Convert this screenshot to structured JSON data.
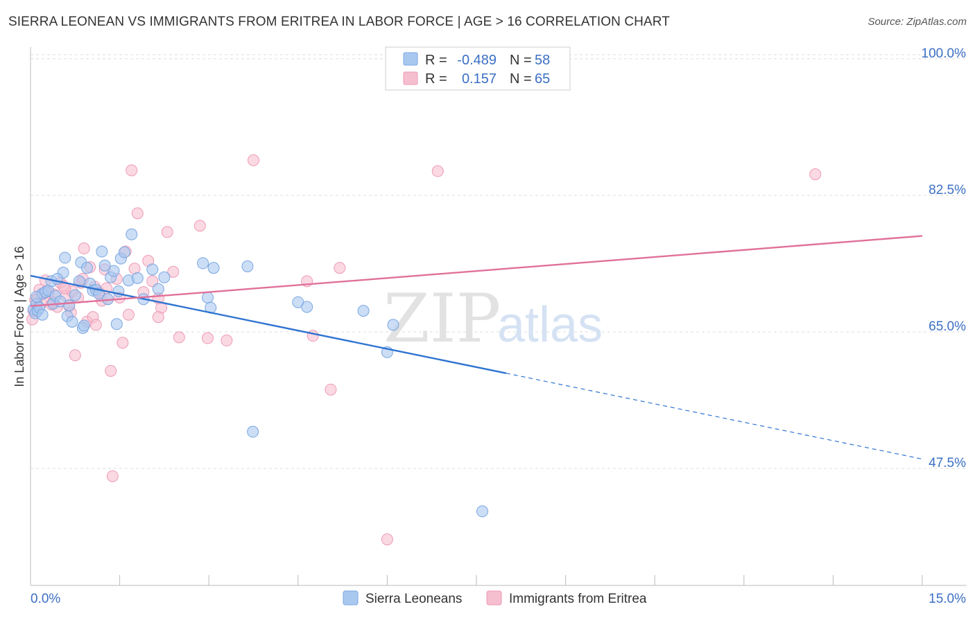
{
  "title": "SIERRA LEONEAN VS IMMIGRANTS FROM ERITREA IN LABOR FORCE | AGE > 16 CORRELATION CHART",
  "source": "Source: ZipAtlas.com",
  "watermark": {
    "zip": "ZIP",
    "atlas": "atlas"
  },
  "colors": {
    "blue_fill": "#a9c8f0",
    "blue_stroke": "#7aa6e0",
    "blue_line": "#2f73d1",
    "pink_fill": "#f6bfd0",
    "pink_stroke": "#ee9ab5",
    "pink_line": "#e0709a",
    "grid": "#dddddd",
    "axis_text": "#3b6fc4"
  },
  "legend_top": [
    {
      "series": "Sierra Leoneans",
      "r_label": "R =",
      "r_value": "-0.489",
      "n_label": "N =",
      "n_value": "58"
    },
    {
      "series": "Immigrants from Eritrea",
      "r_label": "R =",
      "r_value": "0.157",
      "n_label": "N =",
      "n_value": "65"
    }
  ],
  "chart_data": {
    "type": "scatter",
    "title": "SIERRA LEONEAN VS IMMIGRANTS FROM ERITREA IN LABOR FORCE | AGE > 16 CORRELATION CHART",
    "xlabel": "",
    "ylabel": "In Labor Force | Age > 16",
    "xlim": [
      0,
      15
    ],
    "ylim": [
      32.5,
      101.5
    ],
    "x_tick_labels": [
      {
        "value": 0,
        "label": "0.0%"
      },
      {
        "value": 15,
        "label": "15.0%"
      }
    ],
    "y_tick_labels": [
      {
        "value": 100,
        "label": "100.0%"
      },
      {
        "value": 82.5,
        "label": "82.5%"
      },
      {
        "value": 65,
        "label": "65.0%"
      },
      {
        "value": 47.5,
        "label": "47.5%"
      }
    ],
    "series": [
      {
        "name": "Sierra Leoneans",
        "color": "blue",
        "r": -0.489,
        "n": 58,
        "trend": {
          "x0": 0,
          "y0": 72.2,
          "x1": 8.0,
          "y1": 59.7,
          "dash_to_x": 15,
          "dash_to_y": 48.7
        },
        "points": [
          [
            0.05,
            67.9
          ],
          [
            0.08,
            67.4
          ],
          [
            0.1,
            68.6
          ],
          [
            0.12,
            67.7
          ],
          [
            0.15,
            68.1
          ],
          [
            0.2,
            69.9
          ],
          [
            0.25,
            70.1
          ],
          [
            0.3,
            70.3
          ],
          [
            0.35,
            71.5
          ],
          [
            0.38,
            68.6
          ],
          [
            0.42,
            69.6
          ],
          [
            0.5,
            68.9
          ],
          [
            0.55,
            72.6
          ],
          [
            0.58,
            74.5
          ],
          [
            0.62,
            67.0
          ],
          [
            0.7,
            66.3
          ],
          [
            0.75,
            69.7
          ],
          [
            0.82,
            71.5
          ],
          [
            0.85,
            73.9
          ],
          [
            0.88,
            65.5
          ],
          [
            0.95,
            73.2
          ],
          [
            1.0,
            71.2
          ],
          [
            1.05,
            70.3
          ],
          [
            1.1,
            70.4
          ],
          [
            1.15,
            69.9
          ],
          [
            1.2,
            75.3
          ],
          [
            1.3,
            69.2
          ],
          [
            1.35,
            72.0
          ],
          [
            1.4,
            72.8
          ],
          [
            1.45,
            66.0
          ],
          [
            1.48,
            70.2
          ],
          [
            1.52,
            74.4
          ],
          [
            1.58,
            75.2
          ],
          [
            1.65,
            71.6
          ],
          [
            1.7,
            77.5
          ],
          [
            1.8,
            71.9
          ],
          [
            1.9,
            69.2
          ],
          [
            2.05,
            73.0
          ],
          [
            2.15,
            70.5
          ],
          [
            2.25,
            72.0
          ],
          [
            2.9,
            73.8
          ],
          [
            2.98,
            69.4
          ],
          [
            3.03,
            68.1
          ],
          [
            3.08,
            73.2
          ],
          [
            3.65,
            73.4
          ],
          [
            3.74,
            52.2
          ],
          [
            4.5,
            68.8
          ],
          [
            4.65,
            68.2
          ],
          [
            5.6,
            67.7
          ],
          [
            6.0,
            62.4
          ],
          [
            6.1,
            65.9
          ],
          [
            7.6,
            42.0
          ],
          [
            0.1,
            69.5
          ],
          [
            0.2,
            67.2
          ],
          [
            0.45,
            71.8
          ],
          [
            0.65,
            68.4
          ],
          [
            1.25,
            73.5
          ],
          [
            0.9,
            65.8
          ]
        ]
      },
      {
        "name": "Immigrants from Eritrea",
        "color": "pink",
        "r": 0.157,
        "n": 65,
        "trend": {
          "x0": 0,
          "y0": 68.3,
          "x1": 15,
          "y1": 77.3
        },
        "points": [
          [
            0.03,
            66.6
          ],
          [
            0.05,
            67.7
          ],
          [
            0.08,
            69.1
          ],
          [
            0.12,
            69.3
          ],
          [
            0.18,
            68.7
          ],
          [
            0.25,
            71.6
          ],
          [
            0.3,
            70.0
          ],
          [
            0.35,
            68.5
          ],
          [
            0.4,
            69.8
          ],
          [
            0.45,
            68.2
          ],
          [
            0.5,
            71.3
          ],
          [
            0.55,
            70.9
          ],
          [
            0.6,
            69.6
          ],
          [
            0.65,
            68.3
          ],
          [
            0.7,
            70.2
          ],
          [
            0.75,
            62.0
          ],
          [
            0.8,
            69.4
          ],
          [
            0.85,
            71.3
          ],
          [
            0.9,
            75.7
          ],
          [
            0.95,
            66.3
          ],
          [
            1.0,
            73.3
          ],
          [
            1.05,
            66.9
          ],
          [
            1.1,
            65.9
          ],
          [
            1.15,
            70.1
          ],
          [
            1.2,
            69.0
          ],
          [
            1.25,
            73.0
          ],
          [
            1.3,
            69.2
          ],
          [
            1.35,
            60.0
          ],
          [
            1.38,
            46.5
          ],
          [
            1.45,
            71.8
          ],
          [
            1.5,
            69.4
          ],
          [
            1.55,
            63.6
          ],
          [
            1.6,
            75.3
          ],
          [
            1.65,
            67.2
          ],
          [
            1.7,
            85.7
          ],
          [
            1.75,
            73.1
          ],
          [
            1.8,
            80.2
          ],
          [
            1.9,
            70.1
          ],
          [
            1.98,
            74.1
          ],
          [
            2.05,
            71.5
          ],
          [
            2.15,
            69.3
          ],
          [
            2.2,
            68.1
          ],
          [
            2.3,
            77.8
          ],
          [
            2.4,
            72.7
          ],
          [
            2.5,
            64.3
          ],
          [
            2.85,
            78.6
          ],
          [
            2.98,
            64.2
          ],
          [
            3.3,
            63.9
          ],
          [
            3.75,
            87.0
          ],
          [
            4.65,
            71.5
          ],
          [
            4.75,
            64.5
          ],
          [
            5.05,
            57.6
          ],
          [
            5.2,
            73.2
          ],
          [
            6.0,
            38.4
          ],
          [
            6.85,
            85.6
          ],
          [
            13.2,
            85.2
          ],
          [
            0.15,
            70.4
          ],
          [
            0.22,
            69.9
          ],
          [
            0.38,
            68.8
          ],
          [
            0.58,
            70.6
          ],
          [
            0.68,
            67.5
          ],
          [
            0.88,
            71.8
          ],
          [
            1.08,
            70.8
          ],
          [
            1.28,
            70.6
          ],
          [
            2.15,
            66.9
          ]
        ]
      }
    ]
  },
  "bottom_legend": [
    {
      "label": "Sierra Leoneans",
      "color": "blue"
    },
    {
      "label": "Immigrants from Eritrea",
      "color": "pink"
    }
  ]
}
